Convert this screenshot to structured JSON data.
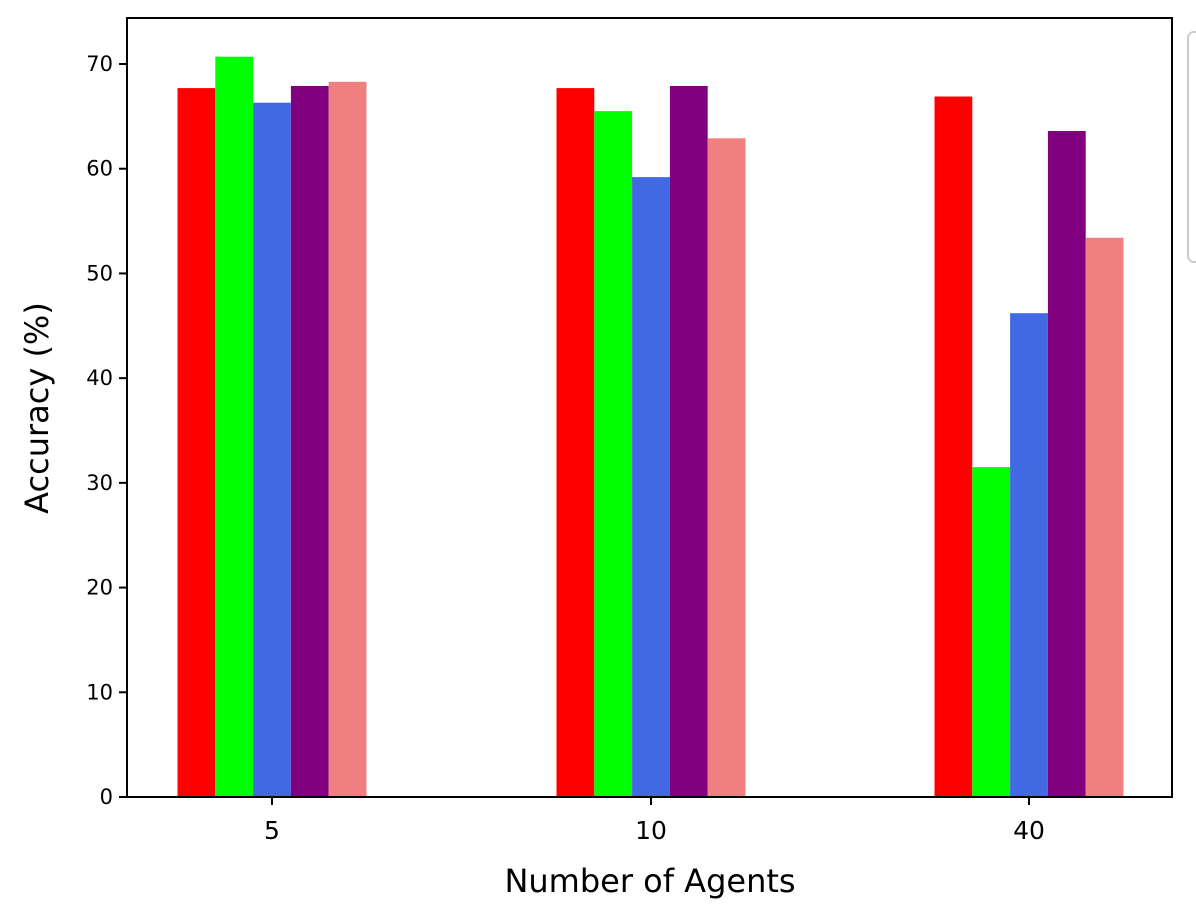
{
  "chart_data": {
    "type": "bar",
    "title": "",
    "xlabel": "Number of Agents",
    "ylabel": "Accuracy (%)",
    "categories": [
      "5",
      "10",
      "40"
    ],
    "ylim": [
      0,
      74
    ],
    "yticks": [
      0,
      10,
      20,
      30,
      40,
      50,
      60,
      70
    ],
    "grid": false,
    "legend_placement": "right (clipped at image edge, labels not visible)",
    "series": [
      {
        "color": "#ff0000",
        "values": [
          67.7,
          67.7,
          66.9
        ]
      },
      {
        "color": "#00ff00",
        "values": [
          70.7,
          65.5,
          31.5
        ]
      },
      {
        "color": "#4169e1",
        "values": [
          66.3,
          59.2,
          46.2
        ]
      },
      {
        "color": "#800080",
        "values": [
          67.9,
          67.9,
          63.6
        ]
      },
      {
        "color": "#f08080",
        "values": [
          68.3,
          62.9,
          53.4
        ]
      }
    ]
  }
}
